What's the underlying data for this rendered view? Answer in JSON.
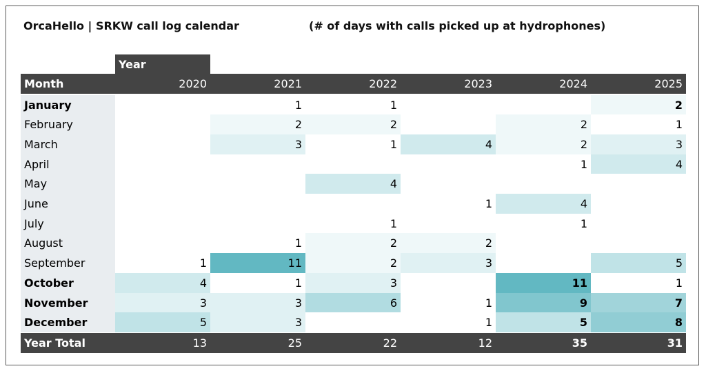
{
  "header": {
    "title": "OrcaHello | SRKW call log calendar",
    "subtitle": "(# of days with calls picked up at hydrophones)"
  },
  "table": {
    "year_label": "Year",
    "month_label": "Month",
    "years": [
      2020,
      2021,
      2022,
      2023,
      2024,
      2025
    ],
    "rows": [
      {
        "month": "January",
        "bold": true,
        "values": [
          null,
          1,
          1,
          null,
          null,
          2
        ]
      },
      {
        "month": "February",
        "bold": false,
        "values": [
          null,
          2,
          2,
          null,
          2,
          1
        ]
      },
      {
        "month": "March",
        "bold": false,
        "values": [
          null,
          3,
          1,
          4,
          2,
          3
        ]
      },
      {
        "month": "April",
        "bold": false,
        "values": [
          null,
          null,
          null,
          null,
          1,
          4
        ]
      },
      {
        "month": "May",
        "bold": false,
        "values": [
          null,
          null,
          4,
          null,
          null,
          null
        ]
      },
      {
        "month": "June",
        "bold": false,
        "values": [
          null,
          null,
          null,
          1,
          4,
          null
        ]
      },
      {
        "month": "July",
        "bold": false,
        "values": [
          null,
          null,
          1,
          null,
          1,
          null
        ]
      },
      {
        "month": "August",
        "bold": false,
        "values": [
          null,
          1,
          2,
          2,
          null,
          null
        ]
      },
      {
        "month": "September",
        "bold": false,
        "values": [
          1,
          11,
          2,
          3,
          null,
          5
        ]
      },
      {
        "month": "October",
        "bold": true,
        "values": [
          4,
          1,
          3,
          null,
          11,
          1
        ]
      },
      {
        "month": "November",
        "bold": true,
        "values": [
          3,
          3,
          6,
          1,
          9,
          7
        ]
      },
      {
        "month": "December",
        "bold": true,
        "values": [
          5,
          3,
          null,
          1,
          5,
          8
        ]
      }
    ],
    "bold_cells": [
      [
        0,
        5
      ],
      [
        9,
        4
      ],
      [
        10,
        4
      ],
      [
        10,
        5
      ],
      [
        11,
        4
      ],
      [
        11,
        5
      ]
    ],
    "totals": {
      "label": "Year Total",
      "values": [
        13,
        25,
        22,
        12,
        35,
        31
      ],
      "bold": [
        4,
        5
      ]
    },
    "color": "#62b8c2"
  }
}
